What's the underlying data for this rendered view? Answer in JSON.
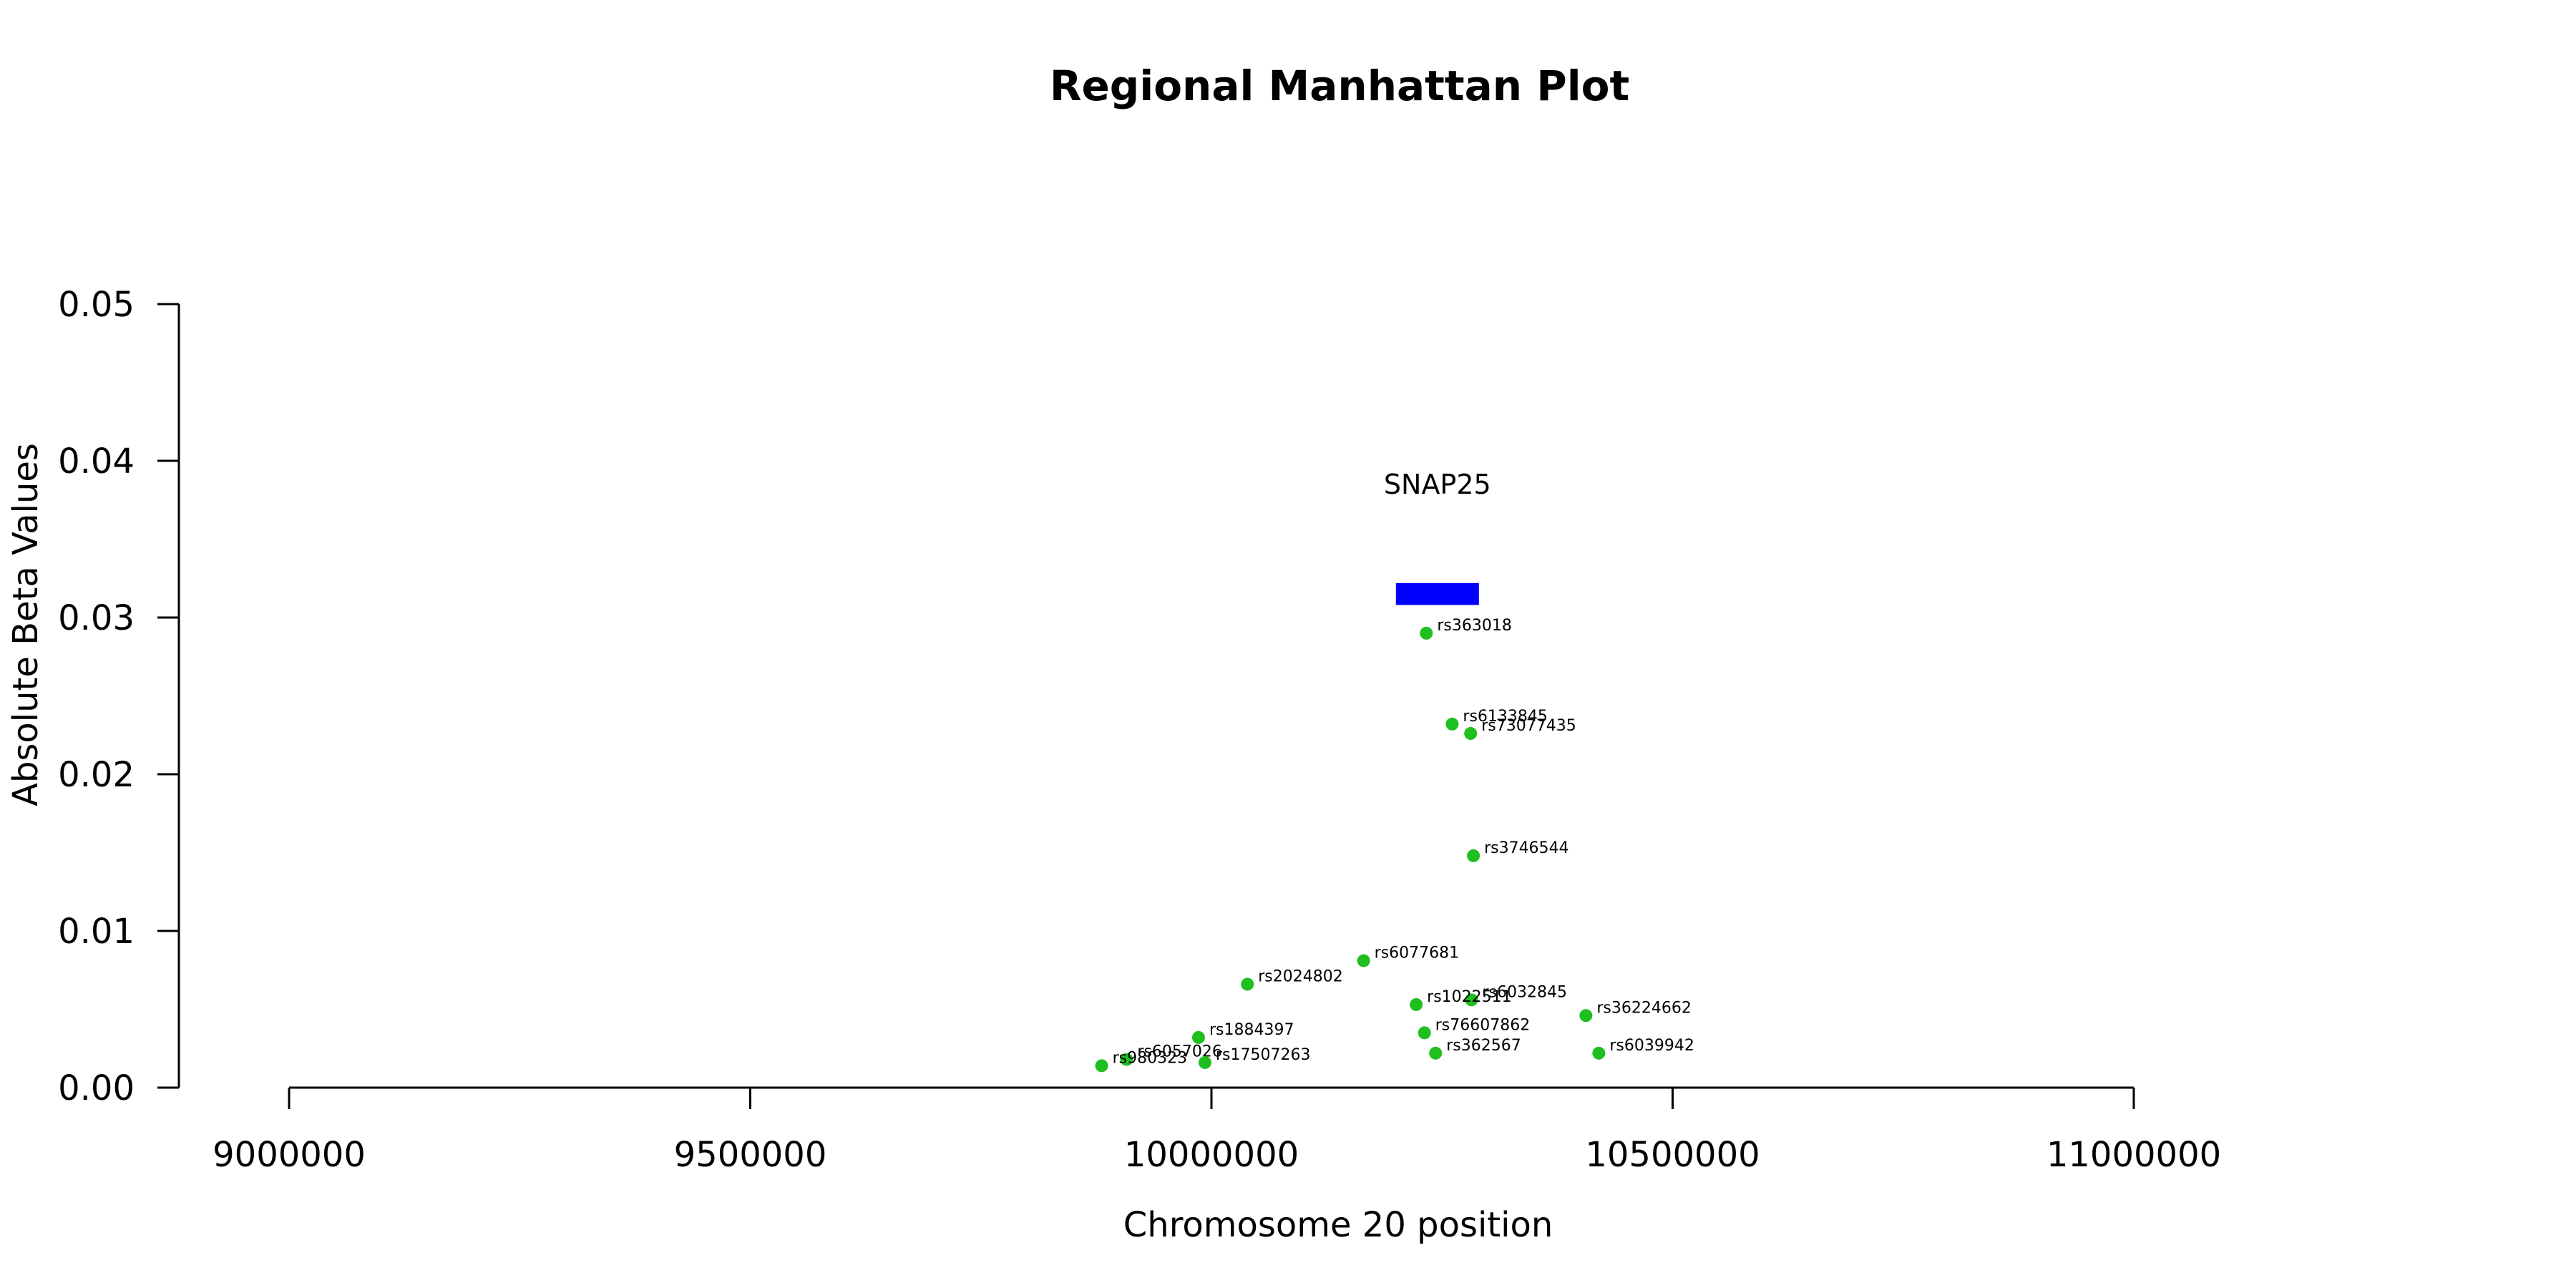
{
  "chart_data": {
    "type": "scatter",
    "title": "Regional Manhattan Plot",
    "xlabel": "Chromosome 20 position",
    "ylabel": "Absolute Beta Values",
    "xlim": [
      8880000,
      11140000
    ],
    "ylim": [
      0,
      0.05
    ],
    "x_ticks": [
      9000000,
      9500000,
      10000000,
      10500000,
      11000000
    ],
    "x_tick_labels": [
      "9000000",
      "9500000",
      "10000000",
      "10500000",
      "11000000"
    ],
    "y_ticks": [
      0,
      0.01,
      0.02,
      0.03,
      0.04,
      0.05
    ],
    "y_tick_labels": [
      "0.00",
      "0.01",
      "0.02",
      "0.03",
      "0.04",
      "0.05"
    ],
    "grid": false,
    "point_color": "#1fbf1f",
    "gene": {
      "name": "SNAP25",
      "start": 10200000,
      "end": 10290000,
      "y_low": 0.0308,
      "y_high": 0.0322,
      "label_y": 0.0385,
      "color": "#0000ff"
    },
    "points": [
      {
        "label": "rs363018",
        "x": 10233000,
        "y": 0.029
      },
      {
        "label": "rs6133845",
        "x": 10261000,
        "y": 0.0232
      },
      {
        "label": "rs73077435",
        "x": 10281000,
        "y": 0.0226
      },
      {
        "label": "rs3746544",
        "x": 10284000,
        "y": 0.0148
      },
      {
        "label": "rs6077681",
        "x": 10165000,
        "y": 0.0081
      },
      {
        "label": "rs2024802",
        "x": 10039000,
        "y": 0.0066
      },
      {
        "label": "rs6032845",
        "x": 10282000,
        "y": 0.0056
      },
      {
        "label": "rs1022511",
        "x": 10222000,
        "y": 0.0053
      },
      {
        "label": "rs36224662",
        "x": 10406000,
        "y": 0.0046
      },
      {
        "label": "rs76607862",
        "x": 10231000,
        "y": 0.0035
      },
      {
        "label": "rs1884397",
        "x": 9986000,
        "y": 0.0032
      },
      {
        "label": "rs362567",
        "x": 10243000,
        "y": 0.0022
      },
      {
        "label": "rs6039942",
        "x": 10420000,
        "y": 0.0022
      },
      {
        "label": "rs6057026",
        "x": 9908000,
        "y": 0.0018
      },
      {
        "label": "rs17507263",
        "x": 9993000,
        "y": 0.0016
      },
      {
        "label": "rs980323",
        "x": 9881000,
        "y": 0.0014
      }
    ]
  }
}
